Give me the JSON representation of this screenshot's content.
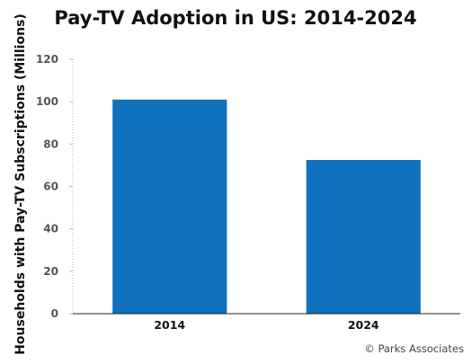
{
  "chart_data": {
    "type": "bar",
    "title": "Pay-TV Adoption in US: 2014-2024",
    "xlabel": "",
    "ylabel": "Households with Pay-TV Subscriptions (Millions)",
    "categories": [
      "2014",
      "2024"
    ],
    "values": [
      101,
      72.5
    ],
    "ylim": [
      0,
      120
    ],
    "yticks": [
      0,
      20,
      40,
      60,
      80,
      100,
      120
    ],
    "grid": false,
    "legend": "none",
    "bar_color": "#1072bd"
  },
  "credit": "© Parks Associates"
}
